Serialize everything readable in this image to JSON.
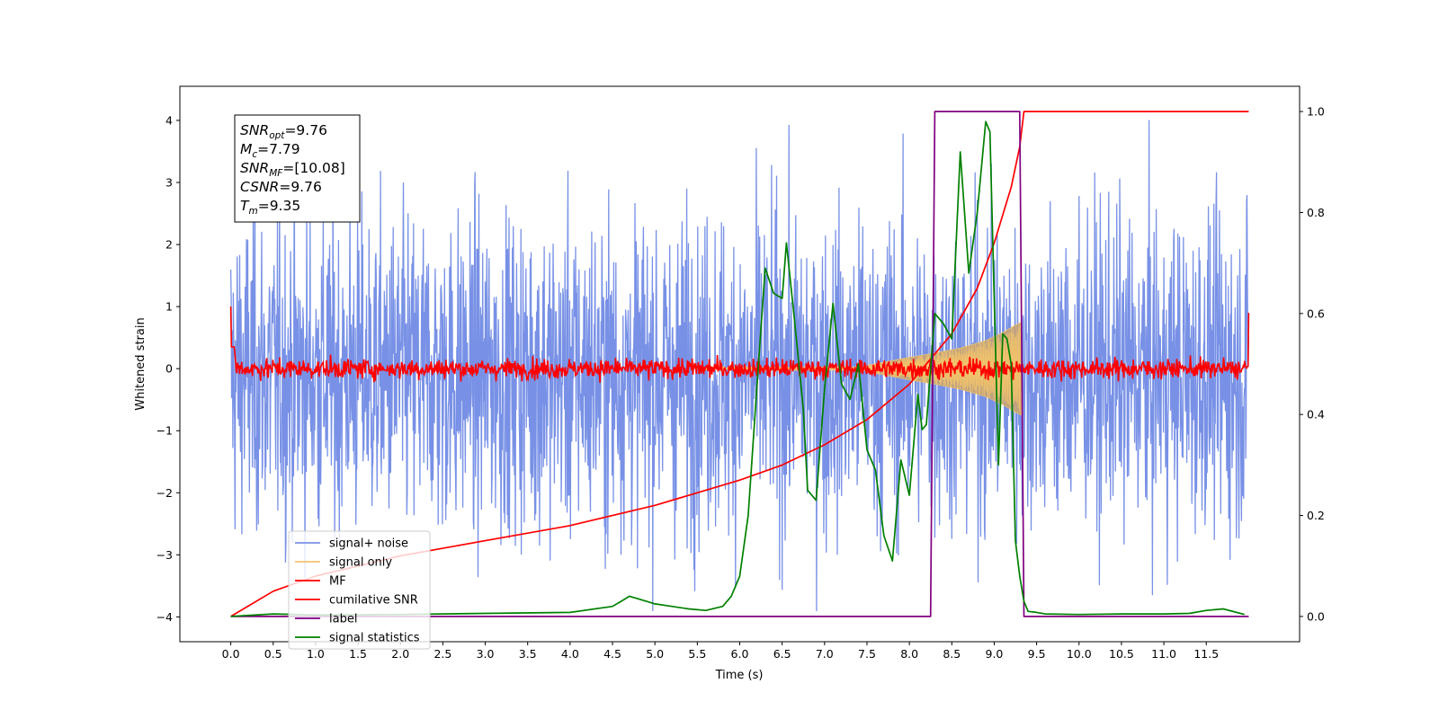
{
  "chart_data": {
    "type": "line",
    "xlabel": "Time (s)",
    "ylabel": "Whitened strain",
    "xlim": [
      -0.6,
      12.6
    ],
    "ylim": [
      -4.4,
      4.55
    ],
    "y2lim": [
      -0.05,
      1.05
    ],
    "x_ticks": [
      "0.0",
      "0.5",
      "1.0",
      "1.5",
      "2.0",
      "2.5",
      "3.0",
      "3.5",
      "4.0",
      "4.5",
      "5.0",
      "5.5",
      "6.0",
      "6.5",
      "7.0",
      "7.5",
      "8.0",
      "8.5",
      "9.0",
      "9.5",
      "10.0",
      "10.5",
      "11.0",
      "11.5"
    ],
    "y_ticks": [
      "4",
      "3",
      "2",
      "1",
      "0",
      "−1",
      "−2",
      "−3",
      "−4"
    ],
    "y2_ticks": [
      "1.0",
      "0.8",
      "0.6",
      "0.4",
      "0.2",
      "0.0"
    ],
    "colors": {
      "signal_noise": "#7891e6",
      "signal_only": "#f2c36b",
      "signal_envelope": "#c9a36c",
      "mf": "#ff0000",
      "cumulative_snr": "#ff0000",
      "label": "#800080",
      "signal_statistics": "#008000"
    },
    "info_box": {
      "snr_opt": {
        "base": "SNR",
        "sub": "opt",
        "value": "=9.76"
      },
      "mc": {
        "base": "M",
        "sub": "c",
        "value": "=7.79"
      },
      "snr_mf": {
        "base": "SNR",
        "sub": "MF",
        "value": "=[10.08]"
      },
      "csnr": {
        "base": "CSNR",
        "sub": "",
        "value": "=9.76"
      },
      "tm": {
        "base": "T",
        "sub": "m",
        "value": "=9.35"
      }
    },
    "legend": {
      "placement": "lower-left",
      "entries": [
        "signal+ noise",
        "signal only",
        "MF",
        "cumilative SNR",
        "label",
        "signal statistics"
      ]
    },
    "series": [
      {
        "name": "signal+ noise",
        "axis": "left",
        "x_range": [
          0.0,
          12.0
        ],
        "typical_band": [
          -1.8,
          1.6
        ],
        "peak_range": [
          -3.9,
          4.0
        ]
      },
      {
        "name": "signal only",
        "axis": "left",
        "x": [
          7.5,
          8.0,
          8.3,
          8.6,
          8.9,
          9.1,
          9.25,
          9.32
        ],
        "envelope": [
          0.05,
          0.18,
          0.25,
          0.33,
          0.45,
          0.58,
          0.7,
          0.75
        ]
      },
      {
        "name": "MF",
        "axis": "left",
        "x_range": [
          0.0,
          12.0
        ],
        "start_value": 1.0,
        "end_value": 0.9,
        "noise_band": [
          -0.15,
          0.15
        ]
      },
      {
        "name": "cumilative SNR",
        "axis": "right",
        "x": [
          0.0,
          0.5,
          1.0,
          2.0,
          3.0,
          4.0,
          5.0,
          6.0,
          6.5,
          7.0,
          7.5,
          8.0,
          8.5,
          8.8,
          9.0,
          9.2,
          9.3,
          9.35,
          12.0
        ],
        "y": [
          0.0,
          0.05,
          0.08,
          0.12,
          0.15,
          0.18,
          0.22,
          0.27,
          0.3,
          0.34,
          0.39,
          0.46,
          0.56,
          0.65,
          0.74,
          0.85,
          0.93,
          1.0,
          1.0
        ]
      },
      {
        "name": "label",
        "axis": "right",
        "x": [
          0.0,
          8.25,
          8.3,
          9.3,
          9.35,
          12.0
        ],
        "y": [
          0.0,
          0.0,
          1.0,
          1.0,
          0.0,
          0.0
        ]
      },
      {
        "name": "signal statistics",
        "axis": "right",
        "x": [
          0.0,
          0.5,
          1.0,
          2.0,
          3.0,
          4.0,
          4.5,
          4.6,
          4.7,
          4.8,
          4.9,
          5.0,
          5.2,
          5.4,
          5.6,
          5.8,
          5.9,
          6.0,
          6.1,
          6.2,
          6.3,
          6.4,
          6.5,
          6.55,
          6.65,
          6.75,
          6.8,
          6.9,
          7.0,
          7.1,
          7.2,
          7.3,
          7.4,
          7.5,
          7.6,
          7.7,
          7.8,
          7.9,
          8.0,
          8.1,
          8.15,
          8.2,
          8.3,
          8.4,
          8.5,
          8.6,
          8.7,
          8.8,
          8.9,
          8.95,
          9.05,
          9.1,
          9.15,
          9.2,
          9.25,
          9.3,
          9.35,
          9.4,
          9.5,
          9.6,
          10.0,
          10.5,
          11.0,
          11.3,
          11.5,
          11.7,
          11.95
        ],
        "y": [
          0.0,
          0.005,
          0.003,
          0.004,
          0.006,
          0.008,
          0.02,
          0.03,
          0.04,
          0.035,
          0.03,
          0.025,
          0.02,
          0.015,
          0.012,
          0.02,
          0.04,
          0.08,
          0.2,
          0.45,
          0.69,
          0.64,
          0.63,
          0.74,
          0.58,
          0.41,
          0.25,
          0.23,
          0.45,
          0.62,
          0.46,
          0.43,
          0.5,
          0.33,
          0.29,
          0.16,
          0.11,
          0.31,
          0.24,
          0.44,
          0.37,
          0.38,
          0.6,
          0.58,
          0.55,
          0.92,
          0.68,
          0.8,
          0.98,
          0.96,
          0.3,
          0.56,
          0.55,
          0.5,
          0.15,
          0.08,
          0.03,
          0.01,
          0.008,
          0.005,
          0.004,
          0.005,
          0.005,
          0.006,
          0.012,
          0.015,
          0.004
        ]
      }
    ]
  }
}
